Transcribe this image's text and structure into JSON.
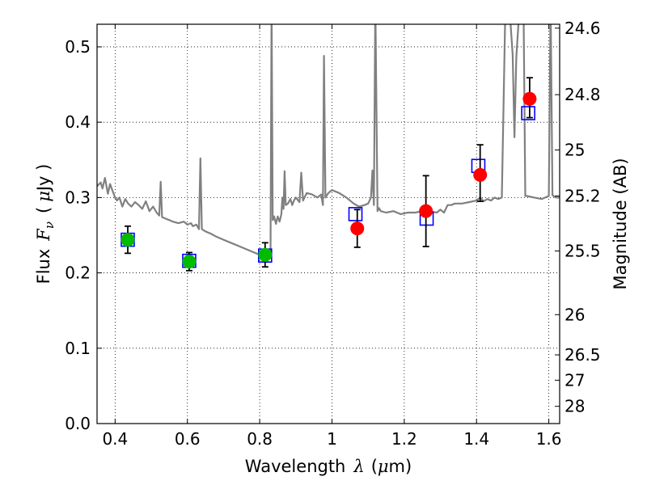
{
  "chart_data": {
    "type": "scatter",
    "title": "",
    "xlabel": {
      "prefix": "Wavelength",
      "symbol": "λ",
      "unit_open": "(",
      "unit_mu": "μ",
      "unit_rest": "m)"
    },
    "ylabel": {
      "prefix": "Flux",
      "symbol": "F",
      "subscript": "ν",
      "unit_open": "(",
      "unit_mu": "μ",
      "unit_rest": "Jy )"
    },
    "y2label": "Magnitude (AB)",
    "xlim": [
      0.35,
      1.63
    ],
    "ylim": [
      0.0,
      0.53
    ],
    "grid": true,
    "x_ticks": [
      {
        "v": 0.4,
        "label": "0.4"
      },
      {
        "v": 0.6,
        "label": "0.6"
      },
      {
        "v": 0.8,
        "label": "0.8"
      },
      {
        "v": 1.0,
        "label": "1"
      },
      {
        "v": 1.2,
        "label": "1.2"
      },
      {
        "v": 1.4,
        "label": "1.4"
      },
      {
        "v": 1.6,
        "label": "1.6"
      }
    ],
    "y_ticks": [
      {
        "v": 0.0,
        "label": "0.0"
      },
      {
        "v": 0.1,
        "label": "0.1"
      },
      {
        "v": 0.2,
        "label": "0.2"
      },
      {
        "v": 0.3,
        "label": "0.3"
      },
      {
        "v": 0.4,
        "label": "0.4"
      },
      {
        "v": 0.5,
        "label": "0.5"
      }
    ],
    "mag_ticks": [
      {
        "v": 24.6,
        "label": "24.6"
      },
      {
        "v": 24.8,
        "label": "24.8"
      },
      {
        "v": 25.0,
        "label": "25"
      },
      {
        "v": 25.2,
        "label": "25.2"
      },
      {
        "v": 25.5,
        "label": "25.5"
      },
      {
        "v": 26.0,
        "label": "26"
      },
      {
        "v": 26.5,
        "label": "26.5"
      },
      {
        "v": 27.0,
        "label": "27"
      },
      {
        "v": 28.0,
        "label": "28"
      }
    ],
    "series": [
      {
        "name": "template-spectrum",
        "kind": "line",
        "color": "#808080",
        "x": [
          0.35,
          0.36,
          0.365,
          0.372,
          0.38,
          0.386,
          0.392,
          0.4,
          0.405,
          0.412,
          0.42,
          0.428,
          0.436,
          0.445,
          0.455,
          0.465,
          0.475,
          0.485,
          0.495,
          0.505,
          0.515,
          0.522,
          0.526,
          0.53,
          0.54,
          0.55,
          0.56,
          0.575,
          0.59,
          0.6,
          0.61,
          0.615,
          0.625,
          0.632,
          0.636,
          0.64,
          0.65,
          0.665,
          0.68,
          0.7,
          0.72,
          0.74,
          0.76,
          0.78,
          0.8,
          0.815,
          0.825,
          0.83,
          0.833,
          0.836,
          0.84,
          0.845,
          0.85,
          0.855,
          0.86,
          0.863,
          0.866,
          0.869,
          0.872,
          0.878,
          0.885,
          0.89,
          0.895,
          0.9,
          0.91,
          0.915,
          0.92,
          0.93,
          0.945,
          0.96,
          0.97,
          0.975,
          0.978,
          0.982,
          0.99,
          1.0,
          1.02,
          1.04,
          1.06,
          1.075,
          1.09,
          1.1,
          1.108,
          1.112,
          1.116,
          1.12,
          1.126,
          1.13,
          1.135,
          1.15,
          1.17,
          1.19,
          1.21,
          1.23,
          1.25,
          1.27,
          1.29,
          1.3,
          1.31,
          1.32,
          1.33,
          1.34,
          1.36,
          1.38,
          1.4,
          1.41,
          1.42,
          1.43,
          1.44,
          1.45,
          1.46,
          1.47,
          1.48,
          1.49,
          1.5,
          1.505,
          1.51,
          1.52,
          1.53,
          1.535,
          1.54,
          1.56,
          1.58,
          1.6,
          1.605,
          1.61,
          1.62,
          1.63
        ],
        "y": [
          0.315,
          0.32,
          0.312,
          0.326,
          0.305,
          0.318,
          0.31,
          0.3,
          0.296,
          0.3,
          0.288,
          0.298,
          0.292,
          0.288,
          0.294,
          0.29,
          0.285,
          0.295,
          0.282,
          0.288,
          0.28,
          0.276,
          0.321,
          0.274,
          0.272,
          0.27,
          0.268,
          0.266,
          0.268,
          0.264,
          0.266,
          0.262,
          0.264,
          0.258,
          0.352,
          0.258,
          0.255,
          0.252,
          0.248,
          0.244,
          0.24,
          0.236,
          0.232,
          0.228,
          0.224,
          0.222,
          0.224,
          0.228,
          0.56,
          0.27,
          0.275,
          0.265,
          0.275,
          0.268,
          0.278,
          0.3,
          0.285,
          0.335,
          0.29,
          0.292,
          0.298,
          0.29,
          0.296,
          0.3,
          0.294,
          0.333,
          0.296,
          0.306,
          0.304,
          0.3,
          0.304,
          0.29,
          0.488,
          0.3,
          0.306,
          0.31,
          0.306,
          0.3,
          0.292,
          0.288,
          0.29,
          0.292,
          0.3,
          0.336,
          0.29,
          0.56,
          0.282,
          0.286,
          0.282,
          0.28,
          0.282,
          0.278,
          0.28,
          0.28,
          0.282,
          0.282,
          0.28,
          0.284,
          0.28,
          0.29,
          0.29,
          0.292,
          0.292,
          0.294,
          0.296,
          0.3,
          0.295,
          0.298,
          0.296,
          0.3,
          0.298,
          0.3,
          0.56,
          0.56,
          0.49,
          0.38,
          0.486,
          0.56,
          0.56,
          0.302,
          0.302,
          0.3,
          0.298,
          0.302,
          0.56,
          0.303,
          0.3,
          0.3
        ]
      },
      {
        "name": "blue-squares",
        "kind": "marker",
        "marker": "open-square",
        "color": "#0000ff",
        "x": [
          0.435,
          0.605,
          0.815,
          1.065,
          1.262,
          1.405,
          1.543
        ],
        "y": [
          0.244,
          0.216,
          0.223,
          0.278,
          0.272,
          0.342,
          0.412
        ]
      },
      {
        "name": "green-points",
        "kind": "marker",
        "marker": "circle",
        "color": "#00bb00",
        "x": [
          0.435,
          0.605,
          0.815
        ],
        "y": [
          0.244,
          0.215,
          0.224
        ],
        "yerr": [
          0.018,
          0.012,
          0.016
        ]
      },
      {
        "name": "red-points",
        "kind": "marker",
        "marker": "circle",
        "color": "#ff0000",
        "x": [
          1.07,
          1.26,
          1.41,
          1.547
        ],
        "y": [
          0.259,
          0.282,
          0.33,
          0.431
        ],
        "yerr_low": [
          0.025,
          0.047,
          0.035,
          0.025
        ],
        "yerr_high": [
          0.025,
          0.047,
          0.04,
          0.028
        ]
      }
    ]
  }
}
